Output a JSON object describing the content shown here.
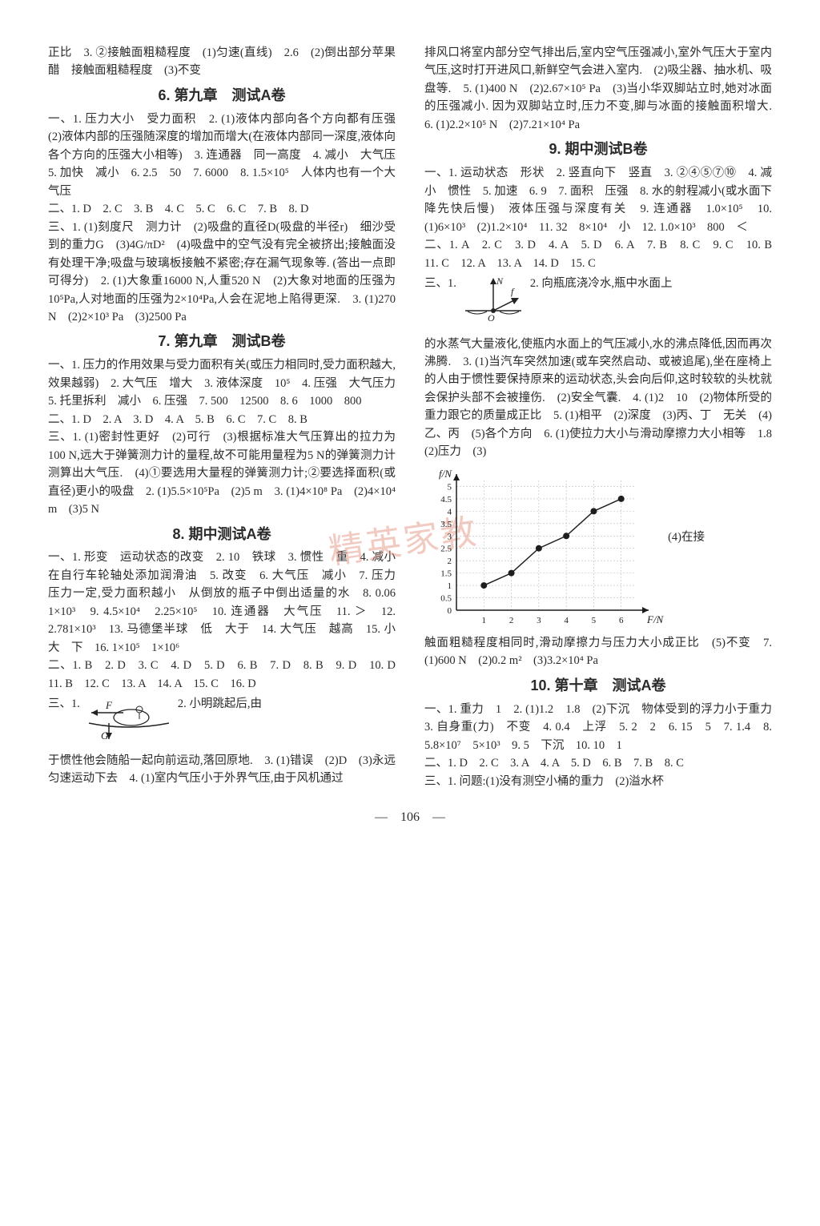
{
  "colors": {
    "text": "#2a2a2a",
    "background": "#ffffff",
    "watermark": "#e18b7a",
    "chart_point": "#1e1e1e",
    "chart_axis": "#1a1a1a",
    "chart_dashed": "#888888"
  },
  "watermark_text": "精英家教",
  "page_number": "106",
  "left": {
    "pretext": "正比　3. ②接触面粗糙程度　(1)匀速(直线)　2.6　(2)倒出部分苹果醋　接触面粗糙程度　(3)不变",
    "s6_title": "6. 第九章　测试A卷",
    "s6_1": "一、1. 压力大小　受力面积　2. (1)液体内部向各个方向都有压强　(2)液体内部的压强随深度的增加而增大(在液体内部同一深度,液体向各个方向的压强大小相等)　3. 连通器　同一高度　4. 减小　大气压　5. 加快　减小　6. 2.5　50　7. 6000　8. 1.5×10⁵　人体内也有一个大气压",
    "s6_2": "二、1. D　2. C　3. B　4. C　5. C　6. C　7. B　8. D",
    "s6_3": "三、1. (1)刻度尺　测力计　(2)吸盘的直径D(吸盘的半径r)　细沙受到的重力G　(3)4G/πD²　(4)吸盘中的空气没有完全被挤出;接触面没有处理干净;吸盘与玻璃板接触不紧密;存在漏气现象等. (答出一点即可得分)　2. (1)大象重16000 N,人重520 N　(2)大象对地面的压强为10⁵Pa,人对地面的压强为2×10⁴Pa,人会在泥地上陷得更深.　3. (1)270 N　(2)2×10³ Pa　(3)2500 Pa",
    "s7_title": "7. 第九章　测试B卷",
    "s7_1": "一、1. 压力的作用效果与受力面积有关(或压力相同时,受力面积越大,效果越弱)　2. 大气压　增大　3. 液体深度　10⁵　4. 压强　大气压力　5. 托里拆利　减小　6. 压强　7. 500　12500　8. 6　1000　800",
    "s7_2": "二、1. D　2. A　3. D　4. A　5. B　6. C　7. C　8. B",
    "s7_3": "三、1. (1)密封性更好　(2)可行　(3)根据标准大气压算出的拉力为100 N,远大于弹簧测力计的量程,故不可能用量程为5 N的弹簧测力计测算出大气压.　(4)①要选用大量程的弹簧测力计;②要选择面积(或直径)更小的吸盘　2. (1)5.5×10⁵Pa　(2)5 m　3. (1)4×10⁸ Pa　(2)4×10⁴ m　(3)5 N",
    "s8_title": "8. 期中测试A卷",
    "s8_1": "一、1. 形变　运动状态的改变　2. 10　铁球　3. 惯性　重　4. 减小　在自行车轮轴处添加润滑油　5. 改变　6. 大气压　减小　7. 压力　压力一定,受力面积越小　从倒放的瓶子中倒出适量的水　8. 0.06　1×10³　9. 4.5×10⁴　2.25×10⁵　10. 连通器　大气压　11. ＞　12. 2.781×10³　13. 马德堡半球　低　大于　14. 大气压　越高　15. 小　大　下　16. 1×10⁵　1×10⁶",
    "s8_2": "二、1. B　2. D　3. C　4. D　5. D　6. B　7. D　8. B　9. D　10. D　11. B　12. C　13. A　14. A　15. C　16. D",
    "s8_3_lead": "三、1.",
    "s8_3_text_after": "2. 小明跳起后,由",
    "s8_3_cont": "于惯性他会随船一起向前运动,落回原地.　3. (1)错误　(2)D　(3)永远匀速运动下去　4. (1)室内气压小于外界气压,由于风机通过",
    "diagram1": {
      "F_label": "F",
      "G_label": "G"
    }
  },
  "right": {
    "pretext": "排风口将室内部分空气排出后,室内空气压强减小,室外气压大于室内气压,这时打开进风口,新鲜空气会进入室内.　(2)吸尘器、抽水机、吸盘等.　5. (1)400 N　(2)2.67×10⁵ Pa　(3)当小华双脚站立时,她对冰面的压强减小. 因为双脚站立时,压力不变,脚与冰面的接触面积增大.　6. (1)2.2×10⁵ N　(2)7.21×10⁴ Pa",
    "s9_title": "9. 期中测试B卷",
    "s9_1": "一、1. 运动状态　形状　2. 竖直向下　竖直　3. ②④⑤⑦⑩　4. 减小　惯性　5. 加速　6. 9　7. 面积　压强　8. 水的射程减小(或水面下降先快后慢)　液体压强与深度有关　9. 连通器　1.0×10⁵　10. (1)6×10³　(2)1.2×10⁴　11. 32　8×10⁴　小　12. 1.0×10³　800　＜",
    "s9_2": "二、1. A　2. C　3. D　4. A　5. D　6. A　7. B　8. C　9. C　10. B　11. C　12. A　13. A　14. D　15. C",
    "s9_3_lead": "三、1.",
    "s9_3_after": "2. 向瓶底浇冷水,瓶中水面上",
    "diagram2": {
      "N_label": "N",
      "f_label": "f",
      "O_label": "O"
    },
    "s9_3_cont": "的水蒸气大量液化,使瓶内水面上的气压减小,水的沸点降低,因而再次沸腾.　3. (1)当汽车突然加速(或车突然启动、或被追尾),坐在座椅上的人由于惯性要保持原来的运动状态,头会向后仰,这时较软的头枕就会保护头部不会被撞伤.　(2)安全气囊.　4. (1)2　10　(2)物体所受的重力跟它的质量成正比　5. (1)相平　(2)深度　(3)丙、丁　无关　(4)乙、丙　(5)各个方向　6. (1)使拉力大小与滑动摩擦力大小相等　1.8　(2)压力　(3)",
    "chart": {
      "type": "scatter-line",
      "xlabel": "F/N",
      "ylabel": "f/N",
      "xlim": [
        0,
        7
      ],
      "ylim": [
        0,
        5.5
      ],
      "xticks": [
        1,
        2,
        3,
        4,
        5,
        6
      ],
      "yticks": [
        0.5,
        1,
        1.5,
        2,
        2.5,
        3,
        3.5,
        4,
        4.5,
        5
      ],
      "points": [
        [
          1,
          1
        ],
        [
          2,
          1.5
        ],
        [
          3,
          2.5
        ],
        [
          4,
          3
        ],
        [
          5,
          4
        ],
        [
          6,
          4.5
        ]
      ],
      "point_color": "#1e1e1e",
      "axis_color": "#1a1a1a",
      "dashed_color": "#bbbbbb",
      "point_size": 4,
      "line_width": 1.5,
      "background_color": "#ffffff",
      "annotation": "(4)在接"
    },
    "s9_chart_after": "触面粗糙程度相同时,滑动摩擦力与压力大小成正比　(5)不变　7. (1)600 N　(2)0.2 m²　(3)3.2×10⁴ Pa",
    "s10_title": "10. 第十章　测试A卷",
    "s10_1": "一、1. 重力　1　2. (1)1.2　1.8　(2)下沉　物体受到的浮力小于重力　3. 自身重(力)　不变　4. 0.4　上浮　5. 2　2　6. 15　5　7. 1.4　8. 5.8×10⁷　5×10³　9. 5　下沉　10. 10　1",
    "s10_2": "二、1. D　2. C　3. A　4. A　5. D　6. B　7. B　8. C",
    "s10_3": "三、1. 问题:(1)没有测空小桶的重力　(2)溢水杯"
  }
}
